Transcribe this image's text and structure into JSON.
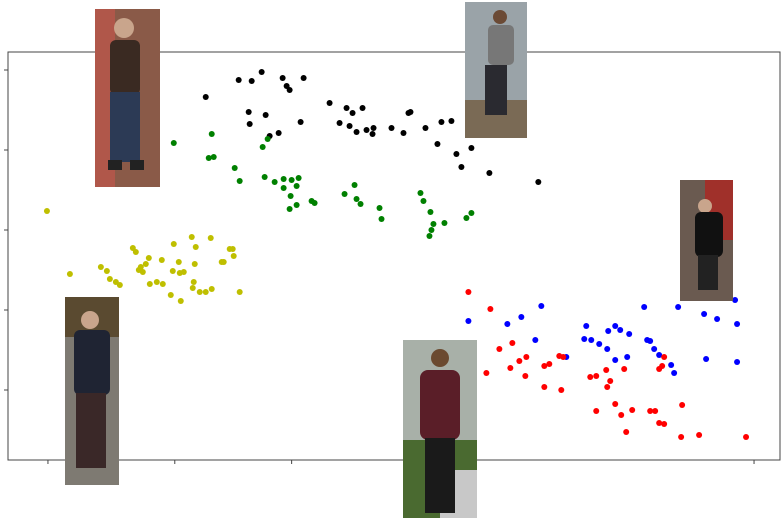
{
  "chart_data": {
    "type": "scatter",
    "xlim": [
      8,
      781
    ],
    "ylim": [
      0,
      408
    ],
    "xticks": [
      48,
      175,
      292,
      755
    ],
    "yticks": [
      70,
      150,
      230,
      310,
      390
    ],
    "series": [
      {
        "color": "#000000",
        "x": [
          206,
          239,
          252,
          262,
          283,
          287,
          290,
          304,
          249,
          250,
          270,
          279,
          266,
          301,
          330,
          347,
          363,
          353,
          340,
          350,
          357,
          367,
          373,
          374,
          392,
          404,
          409,
          411,
          426,
          442,
          452,
          438,
          457,
          472,
          462,
          490,
          539
        ],
        "values": [
          363,
          380,
          379,
          388,
          382,
          374,
          370,
          382,
          348,
          336,
          324,
          327,
          345,
          338,
          357,
          352,
          352,
          347,
          337,
          334,
          328,
          330,
          326,
          332,
          332,
          327,
          347,
          348,
          332,
          338,
          339,
          316,
          306,
          312,
          293,
          287,
          278
        ]
      },
      {
        "color": "#008000",
        "x": [
          174,
          212,
          209,
          214,
          235,
          240,
          263,
          268,
          265,
          275,
          284,
          292,
          299,
          297,
          284,
          291,
          297,
          290,
          312,
          315,
          345,
          355,
          357,
          361,
          380,
          382,
          421,
          424,
          431,
          434,
          432,
          430,
          445,
          467,
          472
        ],
        "values": [
          317,
          326,
          302,
          303,
          292,
          279,
          313,
          321,
          283,
          278,
          281,
          280,
          282,
          274,
          272,
          264,
          255,
          251,
          259,
          257,
          266,
          275,
          261,
          256,
          252,
          241,
          267,
          259,
          248,
          236,
          230,
          224,
          237,
          242,
          247
        ]
      },
      {
        "color": "#bfbf00",
        "x": [
          47,
          70,
          101,
          107,
          110,
          116,
          120,
          133,
          139,
          141,
          143,
          146,
          150,
          157,
          163,
          162,
          174,
          173,
          180,
          184,
          192,
          196,
          200,
          194,
          193,
          206,
          212,
          211,
          222,
          224,
          230,
          233,
          234,
          240,
          181,
          171,
          136,
          149,
          179,
          195
        ],
        "values": [
          249,
          186,
          193,
          189,
          181,
          178,
          175,
          212,
          190,
          193,
          188,
          196,
          176,
          178,
          176,
          200,
          216,
          189,
          187,
          188,
          223,
          213,
          168,
          178,
          172,
          168,
          171,
          222,
          198,
          198,
          211,
          211,
          204,
          168,
          159,
          165,
          208,
          202,
          198,
          196
        ]
      },
      {
        "color": "#0000ff",
        "x": [
          469,
          508,
          522,
          536,
          542,
          567,
          585,
          587,
          592,
          600,
          609,
          616,
          621,
          608,
          630,
          616,
          628,
          645,
          648,
          651,
          655,
          660,
          672,
          675,
          679,
          705,
          707,
          718,
          736,
          738,
          738
        ],
        "values": [
          139,
          136,
          143,
          120,
          154,
          103,
          121,
          134,
          120,
          116,
          129,
          134,
          130,
          111,
          126,
          100,
          103,
          153,
          120,
          119,
          111,
          105,
          95,
          87,
          153,
          146,
          101,
          141,
          160,
          136,
          98
        ]
      },
      {
        "color": "#ff0000",
        "x": [
          469,
          491,
          500,
          513,
          520,
          527,
          511,
          487,
          526,
          545,
          545,
          550,
          562,
          564,
          560,
          591,
          597,
          607,
          608,
          611,
          625,
          616,
          597,
          622,
          627,
          633,
          651,
          656,
          660,
          660,
          665,
          663,
          683,
          665,
          682,
          700,
          747
        ],
        "values": [
          168,
          151,
          111,
          117,
          99,
          103,
          92,
          87,
          84,
          94,
          73,
          96,
          70,
          103,
          104,
          83,
          84,
          90,
          73,
          79,
          91,
          56,
          49,
          45,
          28,
          50,
          49,
          49,
          91,
          37,
          36,
          94,
          55,
          103,
          23,
          25,
          23
        ]
      }
    ]
  }
}
